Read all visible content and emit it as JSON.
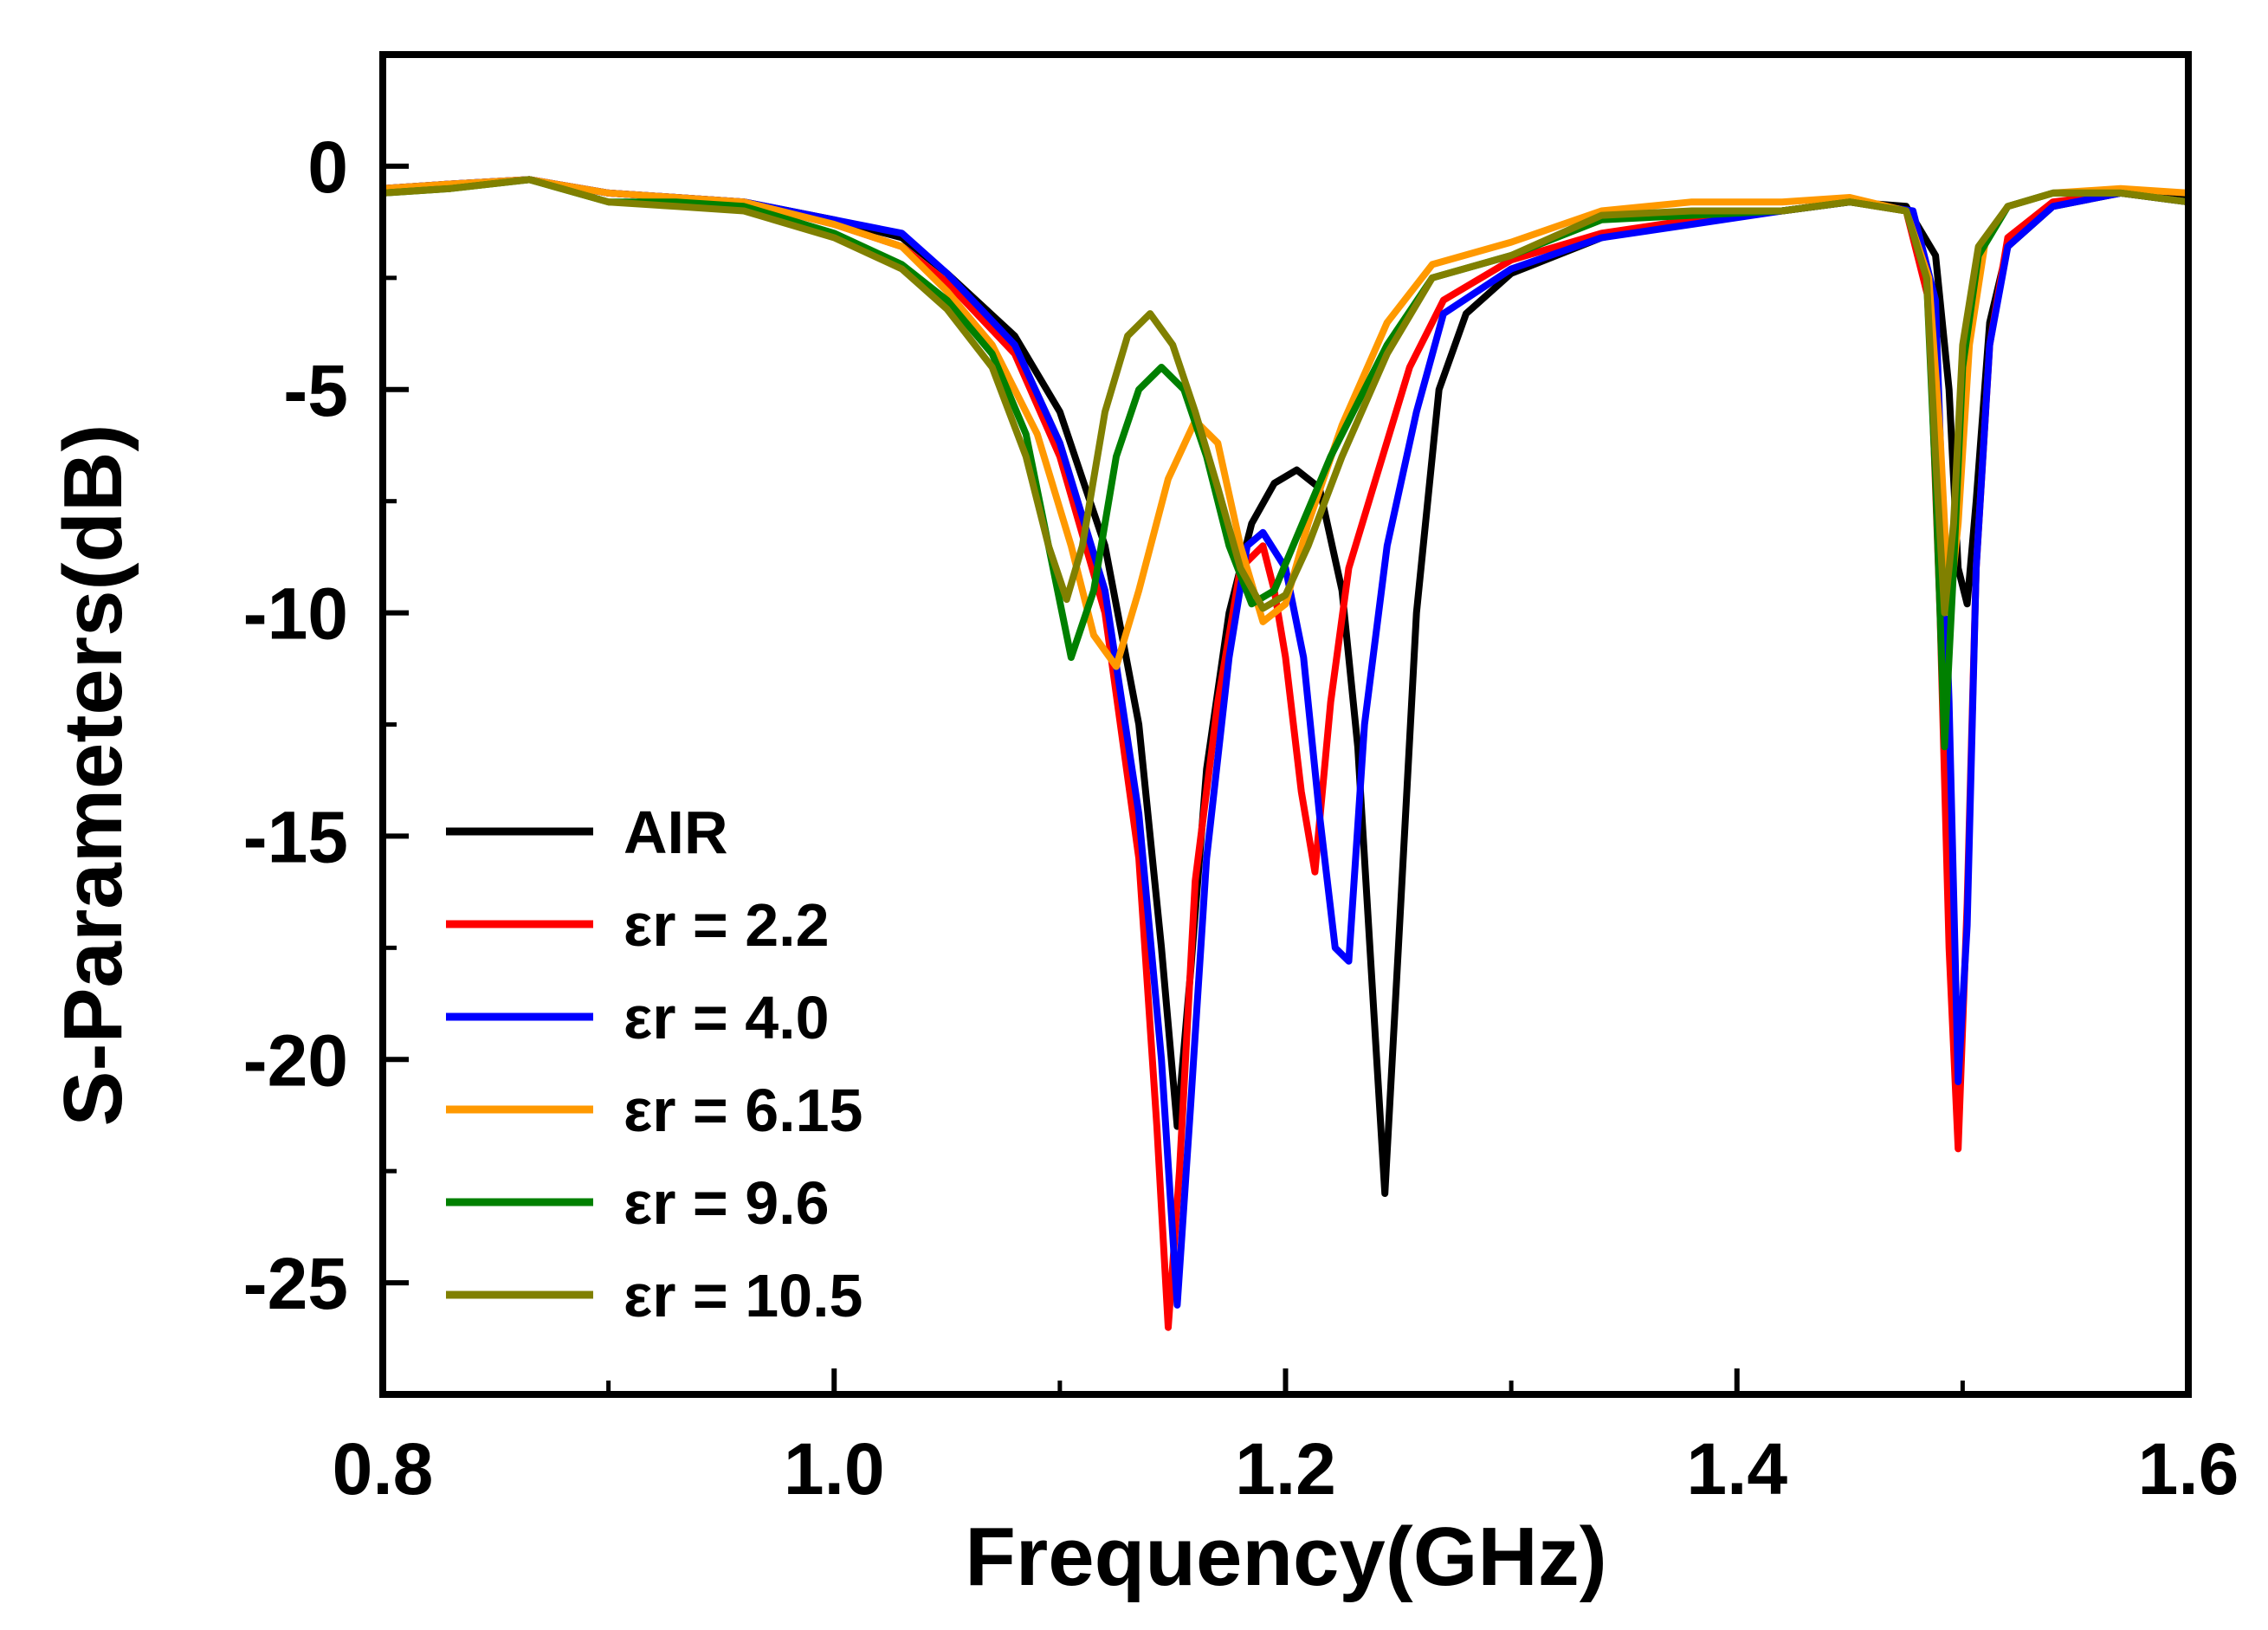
{
  "chart_data": {
    "type": "line",
    "title": "",
    "xlabel": "Frequency(GHz)",
    "ylabel": "S-Parameters(dB)",
    "xlim": [
      0.8,
      1.6
    ],
    "ylim": [
      -27.5,
      2.5
    ],
    "x_ticks": [
      0.8,
      1.0,
      1.2,
      1.4,
      1.6
    ],
    "x_tick_labels": [
      "0.8",
      "1.0",
      "1.2",
      "1.4",
      "1.6"
    ],
    "x_minor_ticks": [
      0.9,
      1.1,
      1.3,
      1.5
    ],
    "y_ticks": [
      0,
      -5,
      -10,
      -15,
      -20,
      -25
    ],
    "y_tick_labels": [
      "0",
      "-5",
      "-10",
      "-15",
      "-20",
      "-25"
    ],
    "y_minor_ticks": [
      -2.5,
      -7.5,
      -12.5,
      -17.5,
      -22.5
    ],
    "grid": false,
    "legend_position": "bottom-left",
    "series": [
      {
        "name": "AIR",
        "color": "#000000",
        "points": [
          [
            0.8,
            -0.5
          ],
          [
            0.83,
            -0.4
          ],
          [
            0.865,
            -0.3
          ],
          [
            0.9,
            -0.6
          ],
          [
            0.93,
            -0.7
          ],
          [
            0.96,
            -0.8
          ],
          [
            1.0,
            -1.2
          ],
          [
            1.03,
            -1.6
          ],
          [
            1.05,
            -2.4
          ],
          [
            1.08,
            -3.8
          ],
          [
            1.1,
            -5.5
          ],
          [
            1.12,
            -8.5
          ],
          [
            1.135,
            -12.5
          ],
          [
            1.145,
            -17.5
          ],
          [
            1.152,
            -21.5
          ],
          [
            1.158,
            -18.0
          ],
          [
            1.165,
            -13.5
          ],
          [
            1.175,
            -10.0
          ],
          [
            1.185,
            -8.0
          ],
          [
            1.195,
            -7.1
          ],
          [
            1.205,
            -6.8
          ],
          [
            1.215,
            -7.2
          ],
          [
            1.225,
            -9.5
          ],
          [
            1.232,
            -13.0
          ],
          [
            1.238,
            -18.0
          ],
          [
            1.244,
            -23.0
          ],
          [
            1.25,
            -17.5
          ],
          [
            1.258,
            -10.0
          ],
          [
            1.268,
            -5.0
          ],
          [
            1.28,
            -3.3
          ],
          [
            1.3,
            -2.4
          ],
          [
            1.34,
            -1.6
          ],
          [
            1.38,
            -1.2
          ],
          [
            1.42,
            -1.0
          ],
          [
            1.45,
            -0.8
          ],
          [
            1.475,
            -0.9
          ],
          [
            1.488,
            -2.0
          ],
          [
            1.494,
            -5.0
          ],
          [
            1.498,
            -9.0
          ],
          [
            1.502,
            -9.8
          ],
          [
            1.506,
            -7.5
          ],
          [
            1.512,
            -3.5
          ],
          [
            1.52,
            -1.8
          ],
          [
            1.54,
            -0.9
          ],
          [
            1.57,
            -0.6
          ],
          [
            1.6,
            -0.7
          ]
        ]
      },
      {
        "name": "εr = 2.2",
        "color": "#ff0000",
        "points": [
          [
            0.8,
            -0.5
          ],
          [
            0.83,
            -0.4
          ],
          [
            0.865,
            -0.3
          ],
          [
            0.9,
            -0.6
          ],
          [
            0.93,
            -0.7
          ],
          [
            0.96,
            -0.8
          ],
          [
            1.0,
            -1.3
          ],
          [
            1.03,
            -1.8
          ],
          [
            1.05,
            -2.6
          ],
          [
            1.08,
            -4.2
          ],
          [
            1.1,
            -6.5
          ],
          [
            1.12,
            -10.0
          ],
          [
            1.135,
            -15.5
          ],
          [
            1.143,
            -21.5
          ],
          [
            1.148,
            -26.0
          ],
          [
            1.153,
            -22.5
          ],
          [
            1.16,
            -16.0
          ],
          [
            1.17,
            -12.0
          ],
          [
            1.18,
            -9.0
          ],
          [
            1.19,
            -8.5
          ],
          [
            1.195,
            -9.5
          ],
          [
            1.2,
            -11.0
          ],
          [
            1.207,
            -14.0
          ],
          [
            1.213,
            -15.8
          ],
          [
            1.22,
            -12.0
          ],
          [
            1.228,
            -9.0
          ],
          [
            1.24,
            -7.0
          ],
          [
            1.255,
            -4.5
          ],
          [
            1.27,
            -3.0
          ],
          [
            1.3,
            -2.1
          ],
          [
            1.34,
            -1.5
          ],
          [
            1.38,
            -1.2
          ],
          [
            1.42,
            -1.0
          ],
          [
            1.45,
            -0.8
          ],
          [
            1.475,
            -1.0
          ],
          [
            1.485,
            -3.0
          ],
          [
            1.49,
            -10.0
          ],
          [
            1.494,
            -17.5
          ],
          [
            1.498,
            -22.0
          ],
          [
            1.502,
            -16.5
          ],
          [
            1.506,
            -9.0
          ],
          [
            1.512,
            -4.0
          ],
          [
            1.52,
            -1.6
          ],
          [
            1.54,
            -0.8
          ],
          [
            1.57,
            -0.6
          ],
          [
            1.6,
            -0.8
          ]
        ]
      },
      {
        "name": "εr = 4.0",
        "color": "#0000ff",
        "points": [
          [
            0.8,
            -0.5
          ],
          [
            0.83,
            -0.4
          ],
          [
            0.865,
            -0.3
          ],
          [
            0.9,
            -0.6
          ],
          [
            0.93,
            -0.7
          ],
          [
            0.96,
            -0.8
          ],
          [
            1.0,
            -1.2
          ],
          [
            1.03,
            -1.5
          ],
          [
            1.05,
            -2.4
          ],
          [
            1.08,
            -4.0
          ],
          [
            1.1,
            -6.2
          ],
          [
            1.12,
            -9.5
          ],
          [
            1.135,
            -14.5
          ],
          [
            1.145,
            -20.0
          ],
          [
            1.152,
            -25.5
          ],
          [
            1.158,
            -21.0
          ],
          [
            1.165,
            -15.5
          ],
          [
            1.175,
            -11.0
          ],
          [
            1.183,
            -8.5
          ],
          [
            1.19,
            -8.2
          ],
          [
            1.2,
            -9.0
          ],
          [
            1.208,
            -11.0
          ],
          [
            1.215,
            -14.5
          ],
          [
            1.222,
            -17.5
          ],
          [
            1.228,
            -17.8
          ],
          [
            1.235,
            -12.5
          ],
          [
            1.245,
            -8.5
          ],
          [
            1.258,
            -5.5
          ],
          [
            1.27,
            -3.3
          ],
          [
            1.3,
            -2.3
          ],
          [
            1.34,
            -1.6
          ],
          [
            1.38,
            -1.3
          ],
          [
            1.42,
            -1.0
          ],
          [
            1.45,
            -0.8
          ],
          [
            1.478,
            -1.0
          ],
          [
            1.488,
            -3.0
          ],
          [
            1.494,
            -12.0
          ],
          [
            1.498,
            -20.5
          ],
          [
            1.502,
            -17.0
          ],
          [
            1.506,
            -9.0
          ],
          [
            1.512,
            -4.0
          ],
          [
            1.52,
            -1.8
          ],
          [
            1.54,
            -0.9
          ],
          [
            1.57,
            -0.6
          ],
          [
            1.6,
            -0.8
          ]
        ]
      },
      {
        "name": "εr = 6.15",
        "color": "#ff9900",
        "points": [
          [
            0.8,
            -0.5
          ],
          [
            0.83,
            -0.4
          ],
          [
            0.865,
            -0.3
          ],
          [
            0.9,
            -0.6
          ],
          [
            0.93,
            -0.7
          ],
          [
            0.96,
            -0.8
          ],
          [
            1.0,
            -1.3
          ],
          [
            1.03,
            -1.8
          ],
          [
            1.05,
            -2.8
          ],
          [
            1.07,
            -4.0
          ],
          [
            1.09,
            -6.0
          ],
          [
            1.105,
            -8.5
          ],
          [
            1.115,
            -10.5
          ],
          [
            1.125,
            -11.2
          ],
          [
            1.135,
            -9.5
          ],
          [
            1.148,
            -7.0
          ],
          [
            1.16,
            -5.7
          ],
          [
            1.17,
            -6.2
          ],
          [
            1.18,
            -8.5
          ],
          [
            1.19,
            -10.2
          ],
          [
            1.2,
            -9.8
          ],
          [
            1.21,
            -8.0
          ],
          [
            1.225,
            -5.8
          ],
          [
            1.245,
            -3.5
          ],
          [
            1.265,
            -2.2
          ],
          [
            1.3,
            -1.7
          ],
          [
            1.34,
            -1.0
          ],
          [
            1.38,
            -0.8
          ],
          [
            1.42,
            -0.8
          ],
          [
            1.45,
            -0.7
          ],
          [
            1.475,
            -1.0
          ],
          [
            1.485,
            -2.5
          ],
          [
            1.49,
            -6.0
          ],
          [
            1.494,
            -10.0
          ],
          [
            1.498,
            -8.0
          ],
          [
            1.503,
            -4.0
          ],
          [
            1.51,
            -1.7
          ],
          [
            1.52,
            -0.9
          ],
          [
            1.54,
            -0.6
          ],
          [
            1.57,
            -0.5
          ],
          [
            1.6,
            -0.6
          ]
        ]
      },
      {
        "name": "εr = 9.6",
        "color": "#008000",
        "points": [
          [
            0.8,
            -0.6
          ],
          [
            0.83,
            -0.5
          ],
          [
            0.865,
            -0.3
          ],
          [
            0.9,
            -0.8
          ],
          [
            0.93,
            -0.8
          ],
          [
            0.96,
            -0.9
          ],
          [
            1.0,
            -1.5
          ],
          [
            1.03,
            -2.2
          ],
          [
            1.05,
            -3.0
          ],
          [
            1.07,
            -4.2
          ],
          [
            1.085,
            -6.0
          ],
          [
            1.095,
            -8.5
          ],
          [
            1.105,
            -11.0
          ],
          [
            1.115,
            -9.5
          ],
          [
            1.125,
            -6.5
          ],
          [
            1.135,
            -5.0
          ],
          [
            1.145,
            -4.5
          ],
          [
            1.155,
            -5.0
          ],
          [
            1.165,
            -6.5
          ],
          [
            1.175,
            -8.5
          ],
          [
            1.185,
            -9.8
          ],
          [
            1.195,
            -9.5
          ],
          [
            1.205,
            -8.3
          ],
          [
            1.22,
            -6.5
          ],
          [
            1.245,
            -4.0
          ],
          [
            1.265,
            -2.5
          ],
          [
            1.3,
            -2.0
          ],
          [
            1.34,
            -1.2
          ],
          [
            1.38,
            -1.1
          ],
          [
            1.42,
            -1.0
          ],
          [
            1.45,
            -0.8
          ],
          [
            1.475,
            -1.0
          ],
          [
            1.484,
            -2.5
          ],
          [
            1.488,
            -7.0
          ],
          [
            1.492,
            -13.0
          ],
          [
            1.496,
            -9.0
          ],
          [
            1.5,
            -4.5
          ],
          [
            1.507,
            -2.0
          ],
          [
            1.52,
            -0.9
          ],
          [
            1.54,
            -0.6
          ],
          [
            1.57,
            -0.6
          ],
          [
            1.6,
            -0.8
          ]
        ]
      },
      {
        "name": "εr = 10.5",
        "color": "#808000",
        "points": [
          [
            0.8,
            -0.6
          ],
          [
            0.83,
            -0.5
          ],
          [
            0.865,
            -0.3
          ],
          [
            0.9,
            -0.8
          ],
          [
            0.93,
            -0.9
          ],
          [
            0.96,
            -1.0
          ],
          [
            1.0,
            -1.6
          ],
          [
            1.03,
            -2.3
          ],
          [
            1.05,
            -3.2
          ],
          [
            1.07,
            -4.5
          ],
          [
            1.085,
            -6.5
          ],
          [
            1.095,
            -8.5
          ],
          [
            1.103,
            -9.7
          ],
          [
            1.11,
            -8.5
          ],
          [
            1.12,
            -5.5
          ],
          [
            1.13,
            -3.8
          ],
          [
            1.14,
            -3.3
          ],
          [
            1.15,
            -4.0
          ],
          [
            1.16,
            -5.5
          ],
          [
            1.17,
            -7.2
          ],
          [
            1.18,
            -9.0
          ],
          [
            1.19,
            -9.9
          ],
          [
            1.2,
            -9.6
          ],
          [
            1.21,
            -8.5
          ],
          [
            1.225,
            -6.5
          ],
          [
            1.245,
            -4.2
          ],
          [
            1.265,
            -2.5
          ],
          [
            1.3,
            -2.0
          ],
          [
            1.34,
            -1.1
          ],
          [
            1.38,
            -1.0
          ],
          [
            1.42,
            -1.0
          ],
          [
            1.45,
            -0.8
          ],
          [
            1.475,
            -1.0
          ],
          [
            1.484,
            -2.5
          ],
          [
            1.488,
            -6.5
          ],
          [
            1.492,
            -10.0
          ],
          [
            1.496,
            -8.0
          ],
          [
            1.5,
            -4.0
          ],
          [
            1.507,
            -1.8
          ],
          [
            1.52,
            -0.9
          ],
          [
            1.54,
            -0.6
          ],
          [
            1.57,
            -0.6
          ],
          [
            1.6,
            -0.8
          ]
        ]
      }
    ]
  }
}
